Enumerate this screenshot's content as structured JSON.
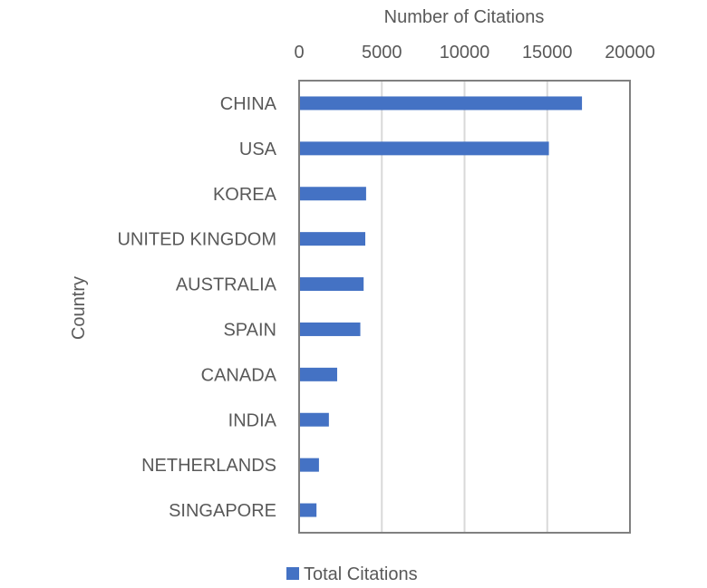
{
  "chart_data": {
    "type": "bar",
    "orientation": "horizontal",
    "title": "",
    "xlabel": "Number of Citations",
    "ylabel": "Country",
    "x_axis_position": "top",
    "xlim": [
      0,
      20000
    ],
    "x_ticks": [
      "0",
      "5000",
      "10000",
      "15000",
      "20000"
    ],
    "categories": [
      "CHINA",
      "USA",
      "KOREA",
      "UNITED KINGDOM",
      "AUSTRALIA",
      "SPAIN",
      "CANADA",
      "INDIA",
      "NETHERLANDS",
      "SINGAPORE"
    ],
    "series": [
      {
        "name": "Total Citations",
        "color": "#4472C4",
        "values": [
          17100,
          15100,
          4050,
          4000,
          3900,
          3700,
          2300,
          1800,
          1200,
          1050
        ]
      }
    ],
    "grid": true,
    "legend_position": "bottom"
  }
}
